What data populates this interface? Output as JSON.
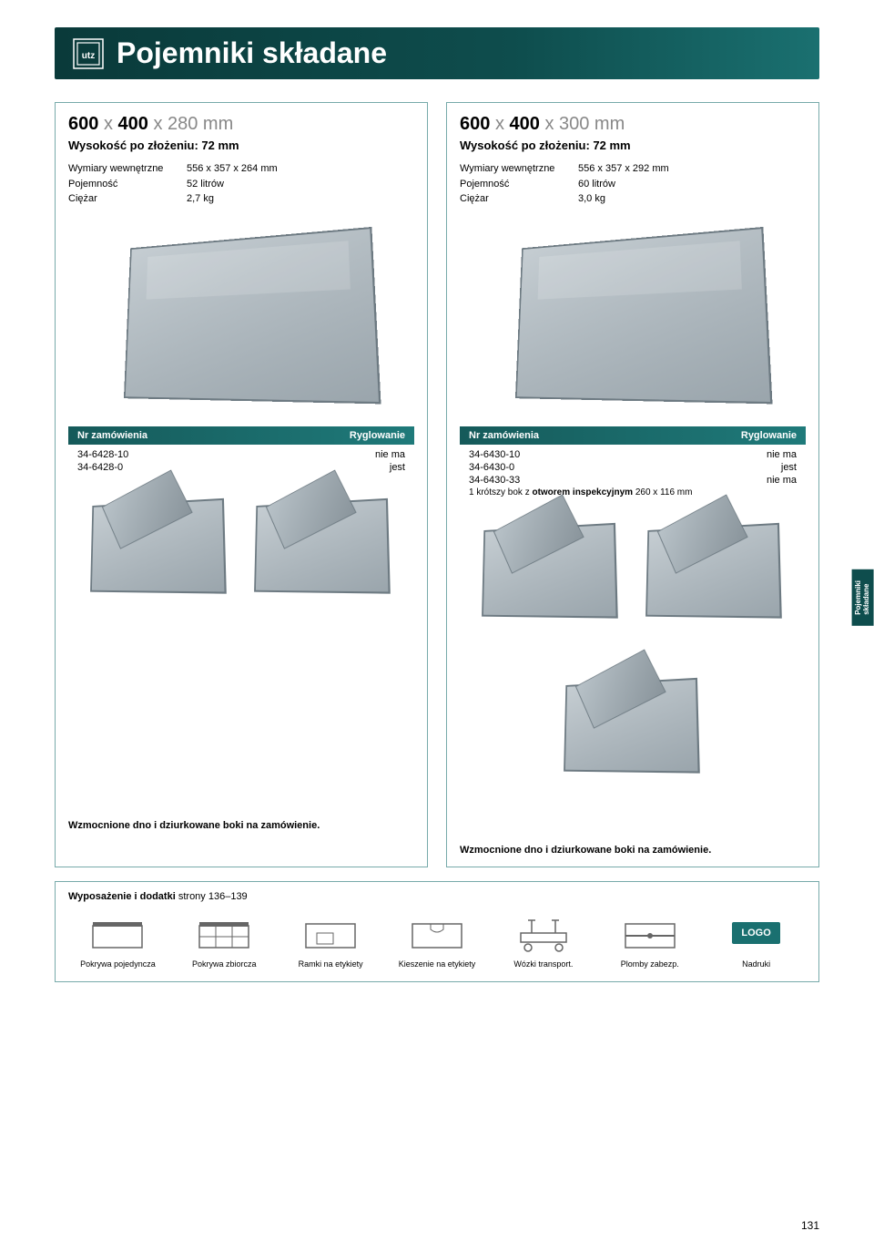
{
  "header": {
    "title": "Pojemniki składane"
  },
  "sideTab": {
    "line1": "Pojemniki",
    "line2": "składane"
  },
  "products": [
    {
      "title_parts": [
        "600",
        "x",
        "400",
        "x 280 mm"
      ],
      "subtitle": "Wysokość po złożeniu: 72 mm",
      "specs": [
        {
          "label": "Wymiary wewnętrzne",
          "value": "556 x 357 x 264 mm"
        },
        {
          "label": "Pojemność",
          "value": "52 litrów"
        },
        {
          "label": "Ciężar",
          "value": "2,7 kg"
        }
      ],
      "order_header": {
        "left": "Nr zamówienia",
        "right": "Ryglowanie"
      },
      "order_rows": [
        {
          "id": "34-6428-10",
          "note": "nie ma"
        },
        {
          "id": "34-6428-0",
          "note": "jest"
        }
      ],
      "order_extra": [],
      "small_images": 2,
      "bottom_note": "Wzmocnione dno i dziurkowane boki na zamówienie."
    },
    {
      "title_parts": [
        "600",
        "x",
        "400",
        "x 300 mm"
      ],
      "subtitle": "Wysokość po złożeniu: 72 mm",
      "specs": [
        {
          "label": "Wymiary wewnętrzne",
          "value": "556 x 357 x 292 mm"
        },
        {
          "label": "Pojemność",
          "value": "60 litrów"
        },
        {
          "label": "Ciężar",
          "value": "3,0 kg"
        }
      ],
      "order_header": {
        "left": "Nr zamówienia",
        "right": "Ryglowanie"
      },
      "order_rows": [
        {
          "id": "34-6430-10",
          "note": "nie ma"
        },
        {
          "id": "34-6430-0",
          "note": "jest"
        },
        {
          "id": "34-6430-33",
          "note": "nie ma"
        }
      ],
      "order_extra": [
        "1 krótszy bok z otworem inspekcyjnym 260 x 116 mm"
      ],
      "small_images": 3,
      "bottom_note": "Wzmocnione dno i dziurkowane boki na zamówienie."
    }
  ],
  "accessories": {
    "title_prefix": "Wyposażenie i dodatki",
    "title_pages": "strony 136–139",
    "items": [
      {
        "label": "Pokrywa pojedyncza",
        "icon": "lid-single"
      },
      {
        "label": "Pokrywa zbiorcza",
        "icon": "lid-multi"
      },
      {
        "label": "Ramki na etykiety",
        "icon": "label-frame"
      },
      {
        "label": "Kieszenie na etykiety",
        "icon": "label-pocket"
      },
      {
        "label": "Wózki transport.",
        "icon": "cart"
      },
      {
        "label": "Plomby zabezp.",
        "icon": "seal"
      },
      {
        "label": "Nadruki",
        "icon": "logo"
      }
    ]
  },
  "pageNumber": "131",
  "colors": {
    "brand_dark": "#0e4d4d",
    "brand_light": "#1a7070",
    "border": "#7aa",
    "crate_fill": "#9aa5ac"
  }
}
